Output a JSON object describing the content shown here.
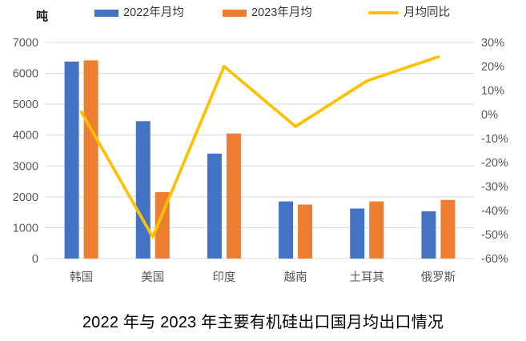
{
  "unit_label": "吨",
  "title": "2022 年与 2023 年主要有机硅出口国月均出口情况",
  "legend": {
    "items": [
      {
        "label": "2022年月均",
        "type": "bar",
        "color": "#4472C4"
      },
      {
        "label": "2023年月均",
        "type": "bar",
        "color": "#ED7D31"
      },
      {
        "label": "月均同比",
        "type": "line",
        "color": "#FFC000"
      }
    ]
  },
  "axes": {
    "left_ticks": [
      "7000",
      "6000",
      "5000",
      "4000",
      "3000",
      "2000",
      "1000",
      "0"
    ],
    "right_ticks": [
      "30%",
      "20%",
      "10%",
      "0%",
      "-10%",
      "-20%",
      "-30%",
      "-40%",
      "-50%",
      "-60%"
    ]
  },
  "colors": {
    "grid": "#D9D9D9",
    "tick_text": "#595959",
    "category_text": "#595959",
    "title_text": "#000000"
  },
  "chart_data": {
    "type": "bar",
    "subtype": "grouped-bars-with-line-overlay",
    "title": "2022 年与 2023 年主要有机硅出口国月均出口情况",
    "categories": [
      "韩国",
      "美国",
      "印度",
      "越南",
      "土耳其",
      "俄罗斯"
    ],
    "series": [
      {
        "name": "2022年月均",
        "type": "bar",
        "axis": "left",
        "color": "#4472C4",
        "values": [
          6380,
          4450,
          3400,
          1850,
          1620,
          1530
        ]
      },
      {
        "name": "2023年月均",
        "type": "bar",
        "axis": "left",
        "color": "#ED7D31",
        "values": [
          6420,
          2150,
          4050,
          1750,
          1850,
          1900
        ]
      },
      {
        "name": "月均同比",
        "type": "line",
        "axis": "right",
        "color": "#FFC000",
        "values": [
          1,
          -51,
          20,
          -5,
          14,
          24
        ]
      }
    ],
    "left_axis": {
      "label": "吨",
      "min": 0,
      "max": 7000,
      "step": 1000
    },
    "right_axis": {
      "label": "%",
      "min": -60,
      "max": 30,
      "step": 10
    },
    "legend_position": "top",
    "grid": "horizontal"
  }
}
